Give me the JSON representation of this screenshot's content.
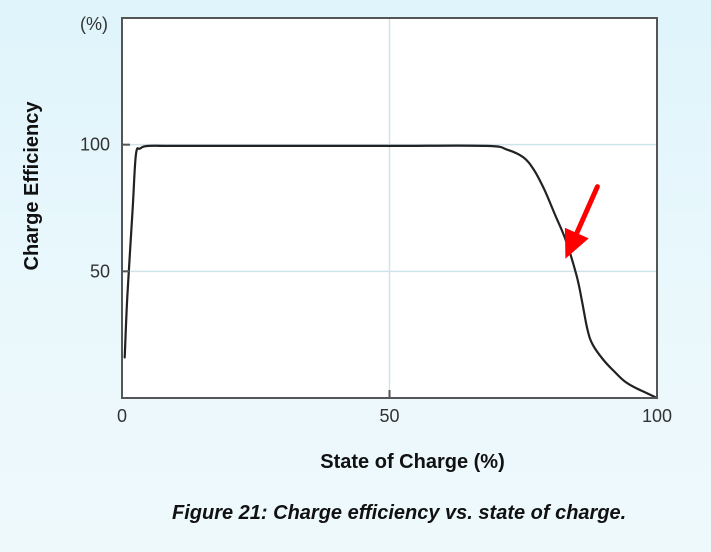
{
  "caption": "Figure 21: Charge efficiency vs. state of charge.",
  "colors": {
    "plot_background": "#ffffff",
    "plot_border": "#555555",
    "grid": "#cfe3ea",
    "curve": "#222222",
    "arrow": "#ff0000"
  },
  "chart_data": {
    "type": "line",
    "title": "",
    "xlabel": "State of Charge (%)",
    "ylabel": "Charge Efficiency",
    "y_unit_label": "(%)",
    "xlim": [
      0,
      100
    ],
    "ylim": [
      0,
      150
    ],
    "x_ticks": [
      0,
      50,
      100
    ],
    "y_ticks": [
      50,
      100
    ],
    "x_tick_labels": [
      "0",
      "50",
      "100"
    ],
    "y_tick_labels": [
      "50",
      "100"
    ],
    "grid": true,
    "series": [
      {
        "x": [
          0.5,
          1,
          2,
          2.6,
          3.4,
          5,
          10,
          30,
          50,
          68,
          72,
          75,
          77,
          79,
          81,
          83,
          85,
          86,
          87,
          88,
          90,
          92,
          94,
          96,
          98,
          100
        ],
        "y": [
          16,
          40,
          75,
          96,
          98.5,
          99.5,
          99.5,
          99.5,
          99.5,
          99.5,
          98,
          95,
          90,
          82,
          72,
          62,
          48,
          38,
          27,
          21,
          15,
          10.5,
          6.5,
          4,
          2,
          0
        ]
      }
    ],
    "annotations": [
      {
        "type": "arrow",
        "pointing_to": {
          "x": 84,
          "y": 55
        }
      }
    ]
  }
}
